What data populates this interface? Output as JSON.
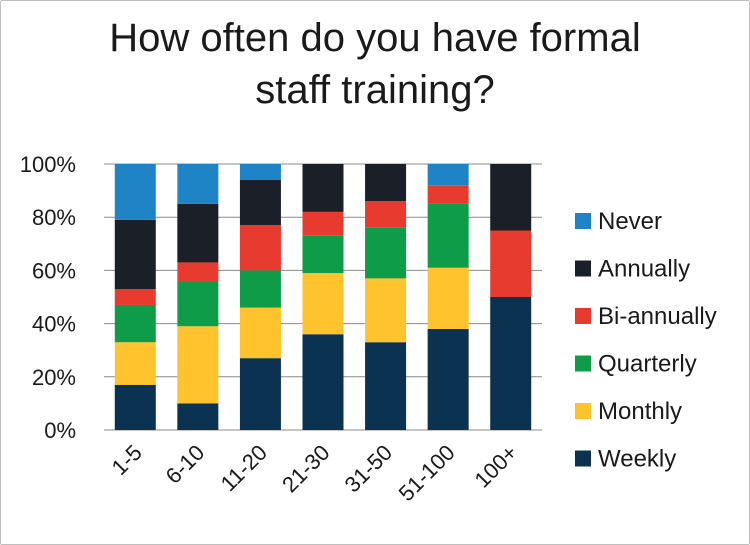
{
  "chart_data": {
    "type": "bar",
    "stacked": true,
    "title": "How often do you have formal staff training?",
    "title_lines": [
      "How often do you have formal",
      "staff training?"
    ],
    "xlabel": "",
    "ylabel": "",
    "categories": [
      "1-5",
      "6-10",
      "11-20",
      "21-30",
      "31-50",
      "51-100",
      "100+"
    ],
    "ylim": [
      0,
      100
    ],
    "yticks": [
      "0%",
      "20%",
      "40%",
      "60%",
      "80%",
      "100%"
    ],
    "grid": true,
    "legend_position": "right",
    "series": [
      {
        "name": "Weekly",
        "color": "#0b3251",
        "values": [
          17,
          10,
          27,
          36,
          33,
          38,
          50
        ]
      },
      {
        "name": "Monthly",
        "color": "#fec32d",
        "values": [
          16,
          29,
          19,
          23,
          24,
          23,
          0
        ]
      },
      {
        "name": "Quarterly",
        "color": "#0e9c48",
        "values": [
          14,
          17,
          14,
          14,
          19,
          24,
          0
        ]
      },
      {
        "name": "Bi-annually",
        "color": "#e63b2e",
        "values": [
          6,
          7,
          17,
          9,
          10,
          7,
          25
        ]
      },
      {
        "name": "Annually",
        "color": "#1b1f27",
        "values": [
          26,
          22,
          17,
          18,
          14,
          0,
          25
        ]
      },
      {
        "name": "Never",
        "color": "#1e84c6",
        "values": [
          21,
          15,
          6,
          0,
          0,
          8,
          0
        ]
      }
    ]
  }
}
